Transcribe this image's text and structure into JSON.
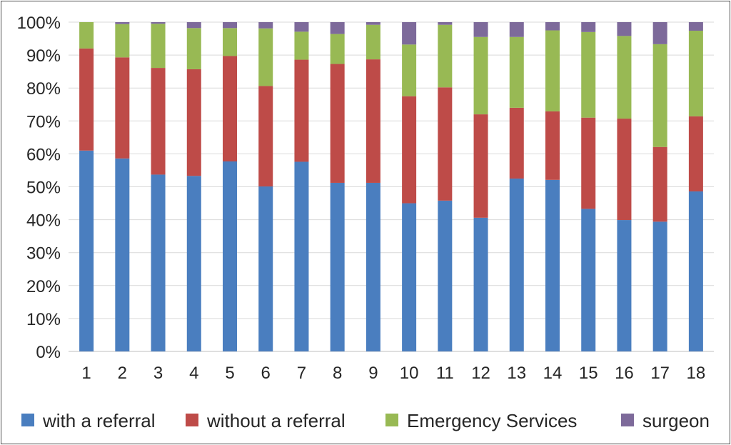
{
  "chart_data": {
    "type": "bar",
    "stacked": true,
    "percent": true,
    "categories": [
      "1",
      "2",
      "3",
      "4",
      "5",
      "6",
      "7",
      "8",
      "9",
      "10",
      "11",
      "12",
      "13",
      "14",
      "15",
      "16",
      "17",
      "18"
    ],
    "series": [
      {
        "name": "with a referral",
        "color": "#4a7ebf",
        "values": [
          61,
          58.6,
          53.7,
          53.3,
          57.7,
          50.1,
          57.6,
          51.2,
          51.2,
          45,
          45.8,
          40.6,
          52.5,
          52.1,
          43.3,
          39.9,
          39.4,
          48.6
        ]
      },
      {
        "name": "without a referral",
        "color": "#be4b48",
        "values": [
          31,
          30.7,
          32.4,
          32.4,
          32,
          30.5,
          31,
          36.1,
          37.5,
          32.5,
          34.4,
          31.4,
          21.5,
          20.8,
          27.7,
          30.8,
          22.7,
          22.8
        ]
      },
      {
        "name": "Emergency Services",
        "color": "#98b954",
        "values": [
          8,
          10.1,
          13.4,
          12.5,
          8.5,
          17.5,
          8.5,
          9.1,
          10.5,
          15.7,
          19,
          23.5,
          21.5,
          24.6,
          26,
          25.1,
          31.2,
          26
        ]
      },
      {
        "name": "surgeon",
        "color": "#7d6a9a",
        "values": [
          0,
          0.6,
          0.5,
          1.8,
          1.8,
          1.9,
          2.9,
          3.6,
          0.8,
          6.8,
          0.8,
          4.5,
          4.5,
          2.5,
          3,
          4.2,
          6.7,
          2.6
        ]
      }
    ],
    "ylim": [
      0,
      100
    ],
    "yticks": [
      "0%",
      "10%",
      "20%",
      "30%",
      "40%",
      "50%",
      "60%",
      "70%",
      "80%",
      "90%",
      "100%"
    ],
    "grid": true,
    "legend_position": "bottom",
    "title": "",
    "xlabel": "",
    "ylabel": ""
  }
}
